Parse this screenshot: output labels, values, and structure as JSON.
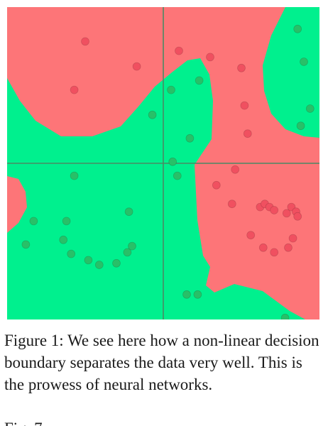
{
  "figure": {
    "caption_label": "Figure 1:",
    "caption_text": "We see here how a non-linear decision boundary separates the data very well. This is the prowess of neural networks.",
    "cut_off_text": "Fig. 7"
  },
  "colors": {
    "red_region": "#fd7578",
    "green_region": "#00f08e",
    "red_point": "#f05060",
    "green_point": "#28c068",
    "axis": "#4a8a64"
  },
  "chart_data": {
    "type": "scatter",
    "title": "",
    "xlabel": "",
    "ylabel": "",
    "xlim": [
      -1,
      1
    ],
    "ylim": [
      -1,
      1
    ],
    "axes_lines": true,
    "grid": false,
    "series": [
      {
        "class": "red",
        "points": [
          [
            -0.5,
            0.78
          ],
          [
            -0.17,
            0.62
          ],
          [
            -0.57,
            0.47
          ],
          [
            0.1,
            0.72
          ],
          [
            0.3,
            0.68
          ],
          [
            0.5,
            0.61
          ],
          [
            0.52,
            0.37
          ],
          [
            0.54,
            0.19
          ],
          [
            0.46,
            -0.04
          ],
          [
            0.34,
            -0.14
          ],
          [
            0.44,
            -0.26
          ],
          [
            0.62,
            -0.28
          ],
          [
            0.65,
            -0.26
          ],
          [
            0.68,
            -0.28
          ],
          [
            0.71,
            -0.3
          ],
          [
            0.79,
            -0.32
          ],
          [
            0.82,
            -0.28
          ],
          [
            0.85,
            -0.31
          ],
          [
            0.86,
            -0.34
          ],
          [
            0.56,
            -0.46
          ],
          [
            0.64,
            -0.54
          ],
          [
            0.71,
            -0.57
          ],
          [
            0.8,
            -0.54
          ],
          [
            0.83,
            -0.48
          ]
        ]
      },
      {
        "class": "green",
        "points": [
          [
            0.86,
            0.86
          ],
          [
            0.9,
            0.65
          ],
          [
            0.94,
            0.35
          ],
          [
            0.88,
            0.24
          ],
          [
            0.05,
            0.47
          ],
          [
            -0.07,
            0.31
          ],
          [
            0.23,
            0.53
          ],
          [
            0.17,
            0.16
          ],
          [
            -0.57,
            -0.08
          ],
          [
            0.06,
            0.01
          ],
          [
            0.09,
            -0.08
          ],
          [
            -0.22,
            -0.31
          ],
          [
            -0.83,
            -0.37
          ],
          [
            -0.64,
            -0.49
          ],
          [
            -0.59,
            -0.58
          ],
          [
            -0.88,
            -0.52
          ],
          [
            -0.48,
            -0.62
          ],
          [
            -0.41,
            -0.65
          ],
          [
            -0.3,
            -0.64
          ],
          [
            -0.23,
            -0.57
          ],
          [
            -0.2,
            -0.53
          ],
          [
            -0.62,
            -0.37
          ],
          [
            0.15,
            -0.84
          ],
          [
            0.22,
            -0.84
          ],
          [
            0.78,
            -0.99
          ]
        ]
      }
    ]
  }
}
